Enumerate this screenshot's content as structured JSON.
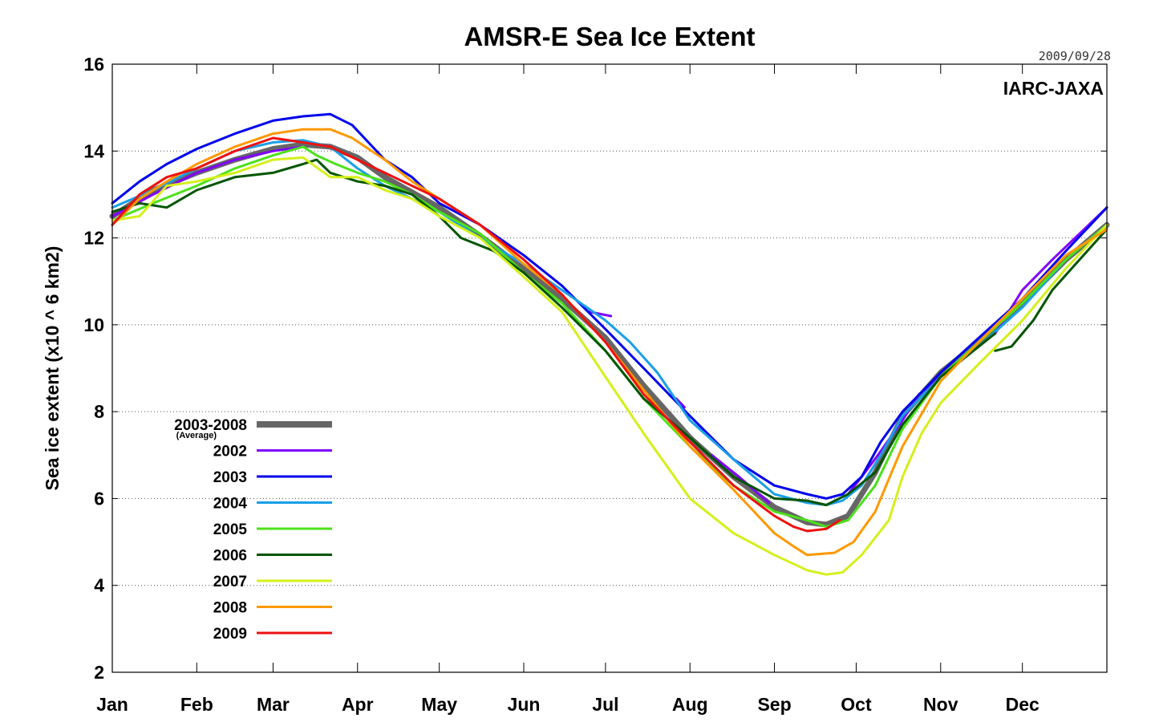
{
  "chart_data": {
    "type": "line",
    "title": "AMSR-E Sea Ice Extent",
    "date_stamp": "2009/09/28",
    "credit": "IARC-JAXA",
    "xlabel": "",
    "ylabel": "Sea ice extent (x10 ^ 6 km2)",
    "xlim": [
      0,
      365
    ],
    "ylim": [
      2,
      16
    ],
    "yticks": [
      2,
      4,
      6,
      8,
      10,
      12,
      14,
      16
    ],
    "month_labels": [
      "Jan",
      "Feb",
      "Mar",
      "Apr",
      "May",
      "Jun",
      "Jul",
      "Aug",
      "Sep",
      "Oct",
      "Nov",
      "Dec"
    ],
    "month_start_days": [
      0,
      31,
      59,
      90,
      120,
      151,
      181,
      212,
      243,
      273,
      304,
      334
    ],
    "grid": "horizontal dotted",
    "legend_position": "lower-left",
    "series": [
      {
        "name": "2003-2008",
        "sub": "(Average)",
        "color": "#666666",
        "width": 7,
        "points": [
          [
            0,
            12.5
          ],
          [
            15,
            13.1
          ],
          [
            31,
            13.5
          ],
          [
            45,
            13.8
          ],
          [
            59,
            14.05
          ],
          [
            70,
            14.15
          ],
          [
            80,
            14.1
          ],
          [
            90,
            13.85
          ],
          [
            100,
            13.4
          ],
          [
            110,
            13.05
          ],
          [
            120,
            12.7
          ],
          [
            135,
            12.05
          ],
          [
            151,
            11.3
          ],
          [
            165,
            10.6
          ],
          [
            181,
            9.7
          ],
          [
            195,
            8.6
          ],
          [
            212,
            7.4
          ],
          [
            228,
            6.5
          ],
          [
            243,
            5.8
          ],
          [
            255,
            5.45
          ],
          [
            262,
            5.4
          ],
          [
            270,
            5.6
          ],
          [
            280,
            6.6
          ],
          [
            290,
            7.9
          ],
          [
            304,
            8.9
          ],
          [
            318,
            9.6
          ],
          [
            334,
            10.5
          ],
          [
            350,
            11.5
          ],
          [
            365,
            12.3
          ]
        ]
      },
      {
        "name": "2002",
        "color": "#8000ff",
        "width": 3,
        "segments": [
          [
            [
              0,
              12.5
            ],
            [
              15,
              13.0
            ],
            [
              31,
              13.5
            ],
            [
              45,
              13.8
            ],
            [
              59,
              14.0
            ],
            [
              70,
              14.1
            ]
          ],
          [
            [
              175,
              10.3
            ],
            [
              183,
              10.2
            ]
          ],
          [
            [
              207,
              8.3
            ],
            [
              210,
              8.1
            ]
          ],
          [
            [
              220,
              7.0
            ],
            [
              230,
              6.5
            ],
            [
              241,
              5.9
            ]
          ],
          [
            [
              270,
              6.1
            ],
            [
              275,
              6.5
            ],
            [
              281,
              7.0
            ],
            [
              290,
              7.8
            ],
            [
              296,
              8.4
            ],
            [
              304,
              8.8
            ],
            [
              312,
              9.2
            ]
          ],
          [
            [
              324,
              9.8
            ],
            [
              334,
              10.8
            ],
            [
              345,
              11.5
            ],
            [
              355,
              12.1
            ],
            [
              365,
              12.7
            ]
          ]
        ]
      },
      {
        "name": "2003",
        "color": "#0000ee",
        "width": 3,
        "points": [
          [
            0,
            12.8
          ],
          [
            10,
            13.3
          ],
          [
            20,
            13.7
          ],
          [
            31,
            14.05
          ],
          [
            45,
            14.4
          ],
          [
            59,
            14.7
          ],
          [
            70,
            14.8
          ],
          [
            80,
            14.85
          ],
          [
            88,
            14.6
          ],
          [
            100,
            13.8
          ],
          [
            110,
            13.4
          ],
          [
            120,
            12.8
          ],
          [
            135,
            12.3
          ],
          [
            151,
            11.6
          ],
          [
            165,
            10.9
          ],
          [
            181,
            9.9
          ],
          [
            195,
            9.0
          ],
          [
            212,
            7.9
          ],
          [
            228,
            6.9
          ],
          [
            243,
            6.3
          ],
          [
            255,
            6.1
          ],
          [
            262,
            6.0
          ],
          [
            268,
            6.1
          ],
          [
            275,
            6.5
          ],
          [
            282,
            7.3
          ],
          [
            290,
            8.0
          ],
          [
            304,
            8.9
          ],
          [
            318,
            9.7
          ],
          [
            334,
            10.6
          ],
          [
            350,
            11.7
          ],
          [
            365,
            12.7
          ]
        ]
      },
      {
        "name": "2004",
        "color": "#1a9fe6",
        "width": 3,
        "points": [
          [
            0,
            12.7
          ],
          [
            15,
            13.1
          ],
          [
            31,
            13.6
          ],
          [
            45,
            14.0
          ],
          [
            59,
            14.2
          ],
          [
            70,
            14.25
          ],
          [
            80,
            14.1
          ],
          [
            90,
            13.6
          ],
          [
            100,
            13.2
          ],
          [
            110,
            12.9
          ],
          [
            120,
            12.6
          ],
          [
            135,
            12.0
          ],
          [
            151,
            11.4
          ],
          [
            165,
            10.8
          ],
          [
            181,
            10.1
          ],
          [
            190,
            9.6
          ],
          [
            200,
            8.9
          ],
          [
            212,
            7.8
          ],
          [
            228,
            6.9
          ],
          [
            243,
            6.1
          ],
          [
            255,
            5.9
          ],
          [
            262,
            5.85
          ],
          [
            268,
            5.95
          ],
          [
            275,
            6.3
          ],
          [
            282,
            7.0
          ],
          [
            290,
            7.9
          ],
          [
            304,
            8.8
          ],
          [
            318,
            9.5
          ],
          [
            334,
            10.4
          ],
          [
            350,
            11.5
          ],
          [
            365,
            12.3
          ]
        ]
      },
      {
        "name": "2005",
        "color": "#4ce11a",
        "width": 3,
        "points": [
          [
            0,
            12.4
          ],
          [
            15,
            12.8
          ],
          [
            31,
            13.2
          ],
          [
            45,
            13.6
          ],
          [
            59,
            13.9
          ],
          [
            70,
            14.1
          ],
          [
            75,
            13.9
          ],
          [
            82,
            13.7
          ],
          [
            90,
            13.5
          ],
          [
            100,
            13.3
          ],
          [
            110,
            13.0
          ],
          [
            120,
            12.6
          ],
          [
            135,
            12.1
          ],
          [
            151,
            11.2
          ],
          [
            165,
            10.5
          ],
          [
            181,
            9.4
          ],
          [
            195,
            8.3
          ],
          [
            212,
            7.2
          ],
          [
            228,
            6.3
          ],
          [
            243,
            5.7
          ],
          [
            255,
            5.5
          ],
          [
            262,
            5.35
          ],
          [
            270,
            5.5
          ],
          [
            280,
            6.3
          ],
          [
            290,
            7.6
          ],
          [
            304,
            8.8
          ],
          [
            318,
            9.6
          ],
          [
            334,
            10.5
          ],
          [
            350,
            11.5
          ],
          [
            365,
            12.3
          ]
        ]
      },
      {
        "name": "2006",
        "color": "#005500",
        "width": 3,
        "segments": [
          [
            [
              0,
              12.6
            ],
            [
              10,
              12.8
            ],
            [
              20,
              12.7
            ],
            [
              31,
              13.1
            ],
            [
              45,
              13.4
            ],
            [
              59,
              13.5
            ],
            [
              70,
              13.7
            ],
            [
              75,
              13.8
            ],
            [
              80,
              13.5
            ],
            [
              90,
              13.3
            ],
            [
              100,
              13.2
            ],
            [
              110,
              13.0
            ],
            [
              120,
              12.5
            ],
            [
              128,
              12.0
            ],
            [
              140,
              11.7
            ],
            [
              151,
              11.2
            ],
            [
              165,
              10.4
            ],
            [
              181,
              9.4
            ],
            [
              195,
              8.3
            ],
            [
              212,
              7.4
            ],
            [
              228,
              6.5
            ],
            [
              243,
              6.0
            ],
            [
              255,
              5.95
            ],
            [
              262,
              5.85
            ],
            [
              270,
              6.1
            ],
            [
              280,
              6.6
            ],
            [
              290,
              7.7
            ],
            [
              304,
              8.8
            ],
            [
              318,
              9.5
            ],
            [
              324,
              9.8
            ]
          ],
          [
            [
              324,
              9.4
            ],
            [
              330,
              9.5
            ],
            [
              338,
              10.1
            ],
            [
              345,
              10.8
            ],
            [
              355,
              11.5
            ],
            [
              365,
              12.2
            ]
          ]
        ]
      },
      {
        "name": "2007",
        "color": "#d4f01a",
        "width": 3,
        "points": [
          [
            0,
            12.4
          ],
          [
            10,
            12.5
          ],
          [
            20,
            13.2
          ],
          [
            31,
            13.3
          ],
          [
            45,
            13.5
          ],
          [
            59,
            13.8
          ],
          [
            70,
            13.85
          ],
          [
            80,
            13.4
          ],
          [
            90,
            13.4
          ],
          [
            100,
            13.1
          ],
          [
            110,
            12.9
          ],
          [
            120,
            12.5
          ],
          [
            135,
            12.0
          ],
          [
            151,
            11.1
          ],
          [
            165,
            10.3
          ],
          [
            181,
            8.8
          ],
          [
            195,
            7.5
          ],
          [
            212,
            6.0
          ],
          [
            228,
            5.2
          ],
          [
            243,
            4.7
          ],
          [
            255,
            4.35
          ],
          [
            262,
            4.25
          ],
          [
            268,
            4.3
          ],
          [
            275,
            4.7
          ],
          [
            285,
            5.5
          ],
          [
            290,
            6.5
          ],
          [
            297,
            7.5
          ],
          [
            304,
            8.2
          ],
          [
            318,
            9.1
          ],
          [
            334,
            10.1
          ],
          [
            350,
            11.3
          ],
          [
            365,
            12.3
          ]
        ]
      },
      {
        "name": "2008",
        "color": "#ff9900",
        "width": 3,
        "points": [
          [
            0,
            12.3
          ],
          [
            10,
            12.9
          ],
          [
            20,
            13.3
          ],
          [
            31,
            13.7
          ],
          [
            45,
            14.1
          ],
          [
            59,
            14.4
          ],
          [
            70,
            14.5
          ],
          [
            80,
            14.5
          ],
          [
            88,
            14.3
          ],
          [
            100,
            13.8
          ],
          [
            110,
            13.3
          ],
          [
            120,
            12.9
          ],
          [
            135,
            12.3
          ],
          [
            151,
            11.4
          ],
          [
            165,
            10.7
          ],
          [
            181,
            9.6
          ],
          [
            195,
            8.5
          ],
          [
            212,
            7.2
          ],
          [
            228,
            6.2
          ],
          [
            243,
            5.2
          ],
          [
            250,
            4.9
          ],
          [
            255,
            4.7
          ],
          [
            265,
            4.75
          ],
          [
            272,
            5.0
          ],
          [
            280,
            5.7
          ],
          [
            290,
            7.2
          ],
          [
            304,
            8.7
          ],
          [
            318,
            9.6
          ],
          [
            334,
            10.6
          ],
          [
            350,
            11.6
          ],
          [
            365,
            12.2
          ]
        ]
      },
      {
        "name": "2009",
        "color": "#ee1111",
        "width": 3,
        "points": [
          [
            0,
            12.3
          ],
          [
            10,
            13.0
          ],
          [
            20,
            13.4
          ],
          [
            31,
            13.6
          ],
          [
            45,
            14.0
          ],
          [
            59,
            14.3
          ],
          [
            70,
            14.2
          ],
          [
            80,
            14.1
          ],
          [
            90,
            13.8
          ],
          [
            100,
            13.5
          ],
          [
            110,
            13.2
          ],
          [
            120,
            12.9
          ],
          [
            135,
            12.3
          ],
          [
            151,
            11.5
          ],
          [
            165,
            10.7
          ],
          [
            181,
            9.6
          ],
          [
            195,
            8.4
          ],
          [
            212,
            7.3
          ],
          [
            228,
            6.3
          ],
          [
            243,
            5.6
          ],
          [
            250,
            5.35
          ],
          [
            255,
            5.25
          ],
          [
            262,
            5.3
          ],
          [
            267,
            5.5
          ]
        ]
      }
    ]
  }
}
